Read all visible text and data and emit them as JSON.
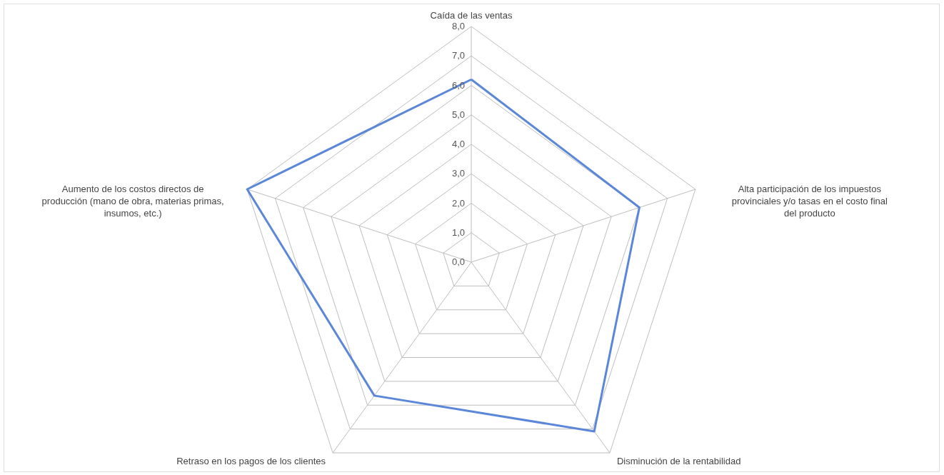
{
  "chart_data": {
    "type": "radar",
    "categories": [
      "Caída de las ventas",
      "Alta participación de los impuestos provinciales y/o tasas en el costo final del producto",
      "Disminución de la rentabilidad",
      "Retraso en los pagos de los clientes",
      "Aumento de los costos directos de producción (mano de obra, materias primas, insumos, etc.)"
    ],
    "series": [
      {
        "color": "#5b87d8",
        "values": [
          6.2,
          6.0,
          7.1,
          5.6,
          8.0
        ]
      }
    ],
    "ylim": [
      0,
      8
    ],
    "yticks": [
      {
        "value": 0,
        "label": "0,0"
      },
      {
        "value": 1,
        "label": "1,0"
      },
      {
        "value": 2,
        "label": "2,0"
      },
      {
        "value": 3,
        "label": "3,0"
      },
      {
        "value": 4,
        "label": "4,0"
      },
      {
        "value": 5,
        "label": "5,0"
      },
      {
        "value": 6,
        "label": "6,0"
      },
      {
        "value": 7,
        "label": "7,0"
      },
      {
        "value": 8,
        "label": "8,0"
      }
    ],
    "grid": true
  }
}
